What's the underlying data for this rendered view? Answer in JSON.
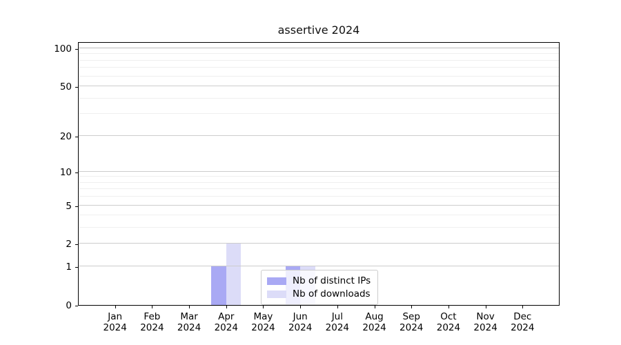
{
  "title": "assertive 2024",
  "chart_data": {
    "type": "bar",
    "title": "assertive 2024",
    "categories": [
      "Jan",
      "Feb",
      "Mar",
      "Apr",
      "May",
      "Jun",
      "Jul",
      "Aug",
      "Sep",
      "Oct",
      "Nov",
      "Dec"
    ],
    "category_year": "2024",
    "series": [
      {
        "name": "Nb of distinct IPs",
        "color": "#a9a9f4",
        "values": [
          0,
          0,
          0,
          1,
          0,
          1,
          0,
          0,
          0,
          0,
          0,
          0
        ]
      },
      {
        "name": "Nb of downloads",
        "color": "#dcdcf8",
        "values": [
          0,
          0,
          0,
          2,
          0,
          1,
          0,
          0,
          0,
          0,
          0,
          0
        ]
      }
    ],
    "xlabel": "",
    "ylabel": "",
    "y_scale": "log10(1+v)",
    "y_ticks": [
      0,
      1,
      2,
      5,
      10,
      20,
      50,
      100
    ],
    "y_minor_gridlines": [
      3,
      4,
      6,
      7,
      8,
      9,
      30,
      40,
      60,
      70,
      80,
      90
    ],
    "ylim": [
      0,
      113
    ],
    "grid": true,
    "legend_position": "inside lower center"
  },
  "legend": {
    "items": [
      {
        "label": "Nb of distinct IPs",
        "color": "#a9a9f4"
      },
      {
        "label": "Nb of downloads",
        "color": "#dcdcf8"
      }
    ]
  },
  "colors": {
    "background": "#ffffff",
    "axis": "#000000",
    "major_grid": "#cccccc",
    "emphasis_grid": "#bdbdbd",
    "minor_grid": "#efefef",
    "legend_border": "#cccccc",
    "bar_distinct_ips": "#a9a9f4",
    "bar_downloads": "#dcdcf8"
  }
}
